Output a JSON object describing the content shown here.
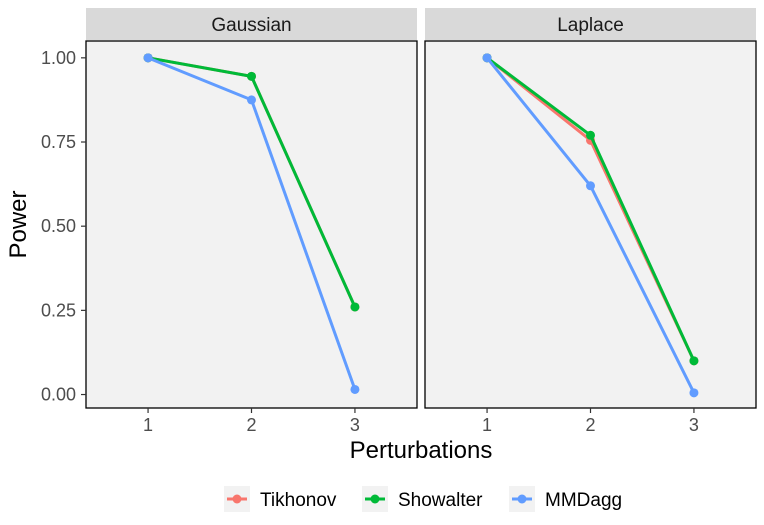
{
  "chart_data": {
    "type": "line",
    "xlabel": "Perturbations",
    "ylabel": "Power",
    "x": [
      1,
      2,
      3
    ],
    "x_ticks": [
      "1",
      "2",
      "3"
    ],
    "ylim": [
      -0.04,
      1.05
    ],
    "y_ticks": [
      "0.00",
      "0.25",
      "0.50",
      "0.75",
      "1.00"
    ],
    "y_tick_values": [
      0,
      0.25,
      0.5,
      0.75,
      1.0
    ],
    "legend_position": "bottom",
    "series_styles": [
      {
        "name": "Tikhonov",
        "color": "#F8766D"
      },
      {
        "name": "Showalter",
        "color": "#00BA38"
      },
      {
        "name": "MMDagg",
        "color": "#619CFF"
      }
    ],
    "panels": [
      {
        "title": "Gaussian",
        "series": [
          {
            "name": "Tikhonov",
            "values": [
              1.0,
              0.945,
              0.26
            ]
          },
          {
            "name": "Showalter",
            "values": [
              1.0,
              0.945,
              0.26
            ]
          },
          {
            "name": "MMDagg",
            "values": [
              1.0,
              0.875,
              0.015
            ]
          }
        ]
      },
      {
        "title": "Laplace",
        "series": [
          {
            "name": "Tikhonov",
            "values": [
              1.0,
              0.755,
              0.1
            ]
          },
          {
            "name": "Showalter",
            "values": [
              1.0,
              0.77,
              0.1
            ]
          },
          {
            "name": "MMDagg",
            "values": [
              1.0,
              0.62,
              0.005
            ]
          }
        ]
      }
    ]
  }
}
